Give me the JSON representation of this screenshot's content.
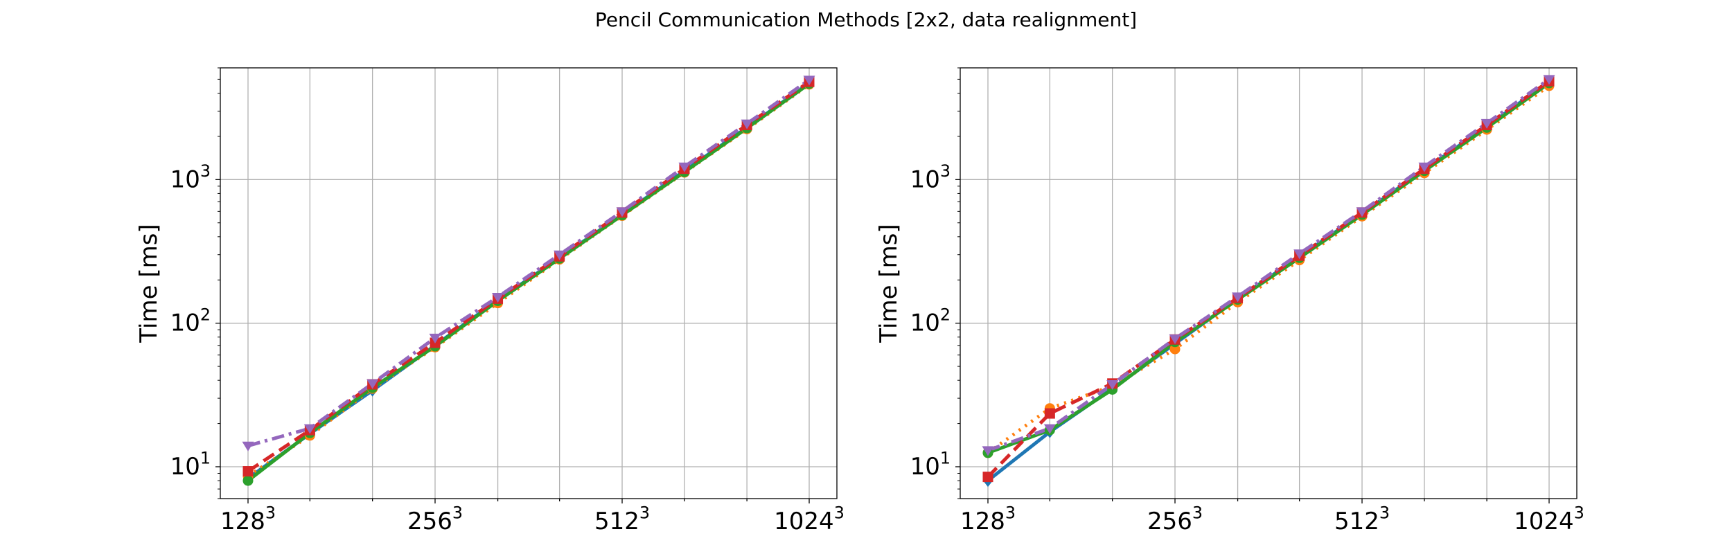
{
  "figure": {
    "suptitle": "Pencil Communication Methods [2x2, data realignment]"
  },
  "chart_data": [
    {
      "type": "line",
      "title": "",
      "ylabel": "Time [ms]",
      "xlabel": "",
      "yscale": "log",
      "ylim": [
        6,
        6000
      ],
      "x_tick_labels": [
        "128³",
        "256³",
        "512³",
        "1024³"
      ],
      "y_tick_labels": [
        "10¹",
        "10²",
        "10³"
      ],
      "grid": true,
      "x": [
        128,
        161,
        203,
        256,
        323,
        406,
        512,
        645,
        813,
        1024
      ],
      "series": [
        {
          "color": "#1f77b4",
          "style": "solid",
          "marker": "diamond",
          "values": [
            8.3,
            17.0,
            34.0,
            70.0,
            145,
            285,
            570,
            1150,
            2300,
            4700
          ]
        },
        {
          "color": "#ff7f0e",
          "style": "dotted",
          "marker": "circle",
          "values": [
            8.6,
            16.5,
            35.0,
            68.0,
            138,
            278,
            560,
            1120,
            2250,
            4600
          ]
        },
        {
          "color": "#2ca02c",
          "style": "solid",
          "marker": "circle",
          "values": [
            8.0,
            17.2,
            35.5,
            69.0,
            143,
            282,
            565,
            1130,
            2280,
            4650
          ]
        },
        {
          "color": "#d62728",
          "style": "dashed",
          "marker": "square",
          "values": [
            9.3,
            18.0,
            37.5,
            73.0,
            148,
            292,
            590,
            1190,
            2400,
            4800
          ]
        },
        {
          "color": "#9467bd",
          "style": "dashdot",
          "marker": "triangle",
          "values": [
            14.0,
            18.5,
            38.0,
            79.0,
            152,
            300,
            600,
            1230,
            2450,
            4950
          ]
        }
      ]
    },
    {
      "type": "line",
      "title": "",
      "ylabel": "Time [ms]",
      "xlabel": "",
      "yscale": "log",
      "ylim": [
        6,
        6000
      ],
      "x_tick_labels": [
        "128³",
        "256³",
        "512³",
        "1024³"
      ],
      "y_tick_labels": [
        "10¹",
        "10²",
        "10³"
      ],
      "grid": true,
      "x": [
        128,
        161,
        203,
        256,
        323,
        406,
        512,
        645,
        813,
        1024
      ],
      "series": [
        {
          "color": "#1f77b4",
          "style": "solid",
          "marker": "diamond",
          "values": [
            8.0,
            17.5,
            35.0,
            72.0,
            148,
            290,
            580,
            1170,
            2350,
            4800
          ]
        },
        {
          "color": "#ff7f0e",
          "style": "dotted",
          "marker": "circle",
          "values": [
            12.5,
            25.5,
            36.5,
            66.0,
            140,
            275,
            555,
            1110,
            2230,
            4500
          ]
        },
        {
          "color": "#2ca02c",
          "style": "solid",
          "marker": "circle",
          "values": [
            12.5,
            18.0,
            34.5,
            74.0,
            146,
            285,
            570,
            1150,
            2300,
            4700
          ]
        },
        {
          "color": "#d62728",
          "style": "dashed",
          "marker": "square",
          "values": [
            8.5,
            23.5,
            38.0,
            77.0,
            150,
            295,
            590,
            1190,
            2400,
            4850
          ]
        },
        {
          "color": "#9467bd",
          "style": "dashdot",
          "marker": "triangle",
          "values": [
            13.0,
            18.5,
            37.5,
            78.0,
            153,
            305,
            600,
            1230,
            2470,
            5000
          ]
        }
      ]
    }
  ]
}
